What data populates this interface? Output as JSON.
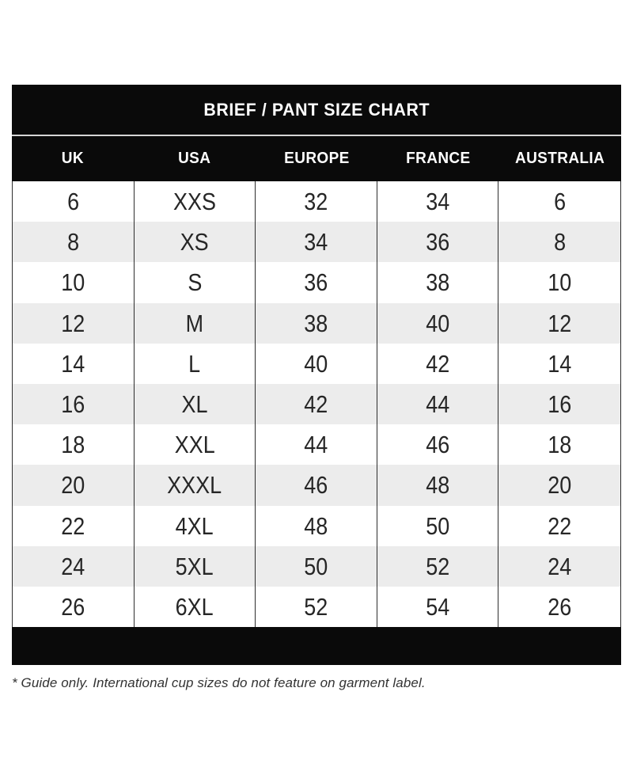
{
  "colors": {
    "bar_background": "#0a0a0a",
    "bar_text": "#ffffff",
    "row_alt_background": "#ececec",
    "row_text": "#262626",
    "column_border": "#2e2e2e",
    "title_separator": "#d4d4d4",
    "footnote_text": "#333333",
    "page_background": "#ffffff"
  },
  "chart_data": {
    "type": "table",
    "title": "BRIEF / PANT SIZE CHART",
    "columns": [
      "UK",
      "USA",
      "EUROPE",
      "FRANCE",
      "AUSTRALIA"
    ],
    "rows": [
      [
        "6",
        "XXS",
        "32",
        "34",
        "6"
      ],
      [
        "8",
        "XS",
        "34",
        "36",
        "8"
      ],
      [
        "10",
        "S",
        "36",
        "38",
        "10"
      ],
      [
        "12",
        "M",
        "38",
        "40",
        "12"
      ],
      [
        "14",
        "L",
        "40",
        "42",
        "14"
      ],
      [
        "16",
        "XL",
        "42",
        "44",
        "16"
      ],
      [
        "18",
        "XXL",
        "44",
        "46",
        "18"
      ],
      [
        "20",
        "XXXL",
        "46",
        "48",
        "20"
      ],
      [
        "22",
        "4XL",
        "48",
        "50",
        "22"
      ],
      [
        "24",
        "5XL",
        "50",
        "52",
        "24"
      ],
      [
        "26",
        "6XL",
        "52",
        "54",
        "26"
      ]
    ],
    "footnote": "* Guide only. International cup sizes do not feature on garment label.",
    "layout_hints": {
      "row_striping": "white/gray alternating starting white",
      "header_style": "black bars with white bold text",
      "grid": "vertical column borders only"
    }
  }
}
